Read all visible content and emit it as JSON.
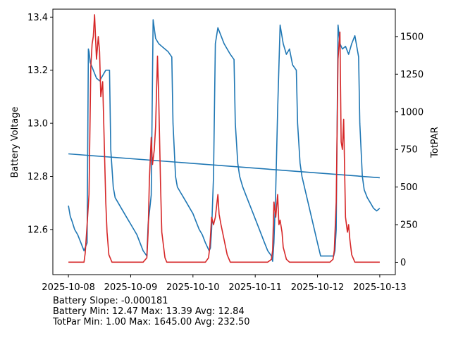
{
  "chart_data": {
    "type": "line",
    "x_tick_labels": [
      "2025-10-08",
      "2025-10-09",
      "2025-10-10",
      "2025-10-11",
      "2025-10-12",
      "2025-10-13"
    ],
    "x_range_days": [
      -0.25,
      5.25
    ],
    "left_axis": {
      "label": "Battery Voltage",
      "color": "#1f77b4",
      "ylim": [
        12.43,
        13.43
      ],
      "tick_labels": [
        "12.6",
        "12.8",
        "13.0",
        "13.2",
        "13.4"
      ],
      "tick_values": [
        12.6,
        12.8,
        13.0,
        13.2,
        13.4
      ]
    },
    "right_axis": {
      "label": "TotPAR",
      "color": "#d62728",
      "ylim": [
        -82,
        1682
      ],
      "tick_labels": [
        "0",
        "250",
        "500",
        "750",
        "1000",
        "1250",
        "1500"
      ],
      "tick_values": [
        0,
        250,
        500,
        750,
        1000,
        1250,
        1500
      ]
    },
    "series": [
      {
        "name": "Battery Voltage",
        "axis": "left",
        "color": "#1f77b4",
        "x_days": [
          0.0,
          0.03,
          0.06,
          0.1,
          0.15,
          0.2,
          0.25,
          0.3,
          0.32,
          0.33,
          0.35,
          0.4,
          0.45,
          0.5,
          0.55,
          0.6,
          0.66,
          0.68,
          0.72,
          0.75,
          0.8,
          0.85,
          0.9,
          0.95,
          1.0,
          1.05,
          1.1,
          1.15,
          1.2,
          1.26,
          1.28,
          1.33,
          1.36,
          1.4,
          1.45,
          1.5,
          1.55,
          1.6,
          1.66,
          1.68,
          1.72,
          1.75,
          1.8,
          1.85,
          1.9,
          1.95,
          2.0,
          2.05,
          2.1,
          2.15,
          2.2,
          2.26,
          2.28,
          2.3,
          2.33,
          2.36,
          2.4,
          2.45,
          2.5,
          2.55,
          2.6,
          2.66,
          2.68,
          2.72,
          2.75,
          2.8,
          2.85,
          2.9,
          2.95,
          3.0,
          3.05,
          3.1,
          3.15,
          3.2,
          3.26,
          3.28,
          3.3,
          3.33,
          3.36,
          3.4,
          3.45,
          3.5,
          3.55,
          3.6,
          3.66,
          3.68,
          3.72,
          3.75,
          3.8,
          3.85,
          3.9,
          3.95,
          4.0,
          4.05,
          4.1,
          4.15,
          4.2,
          4.26,
          4.28,
          4.3,
          4.33,
          4.36,
          4.4,
          4.45,
          4.5,
          4.55,
          4.6,
          4.66,
          4.68,
          4.72,
          4.75,
          4.8,
          4.85,
          4.9,
          4.95,
          5.0
        ],
        "values": [
          12.69,
          12.65,
          12.63,
          12.6,
          12.58,
          12.55,
          12.52,
          12.55,
          13.28,
          13.27,
          13.23,
          13.2,
          13.17,
          13.16,
          13.18,
          13.2,
          13.2,
          12.9,
          12.76,
          12.72,
          12.7,
          12.68,
          12.66,
          12.64,
          12.62,
          12.6,
          12.58,
          12.55,
          12.52,
          12.5,
          12.62,
          12.73,
          13.39,
          13.32,
          13.3,
          13.29,
          13.28,
          13.27,
          13.25,
          13.0,
          12.8,
          12.76,
          12.74,
          12.72,
          12.7,
          12.68,
          12.66,
          12.63,
          12.6,
          12.58,
          12.55,
          12.52,
          12.53,
          12.6,
          12.8,
          13.3,
          13.36,
          13.33,
          13.3,
          13.28,
          13.26,
          13.24,
          13.0,
          12.85,
          12.8,
          12.76,
          12.73,
          12.7,
          12.67,
          12.64,
          12.61,
          12.58,
          12.55,
          12.52,
          12.5,
          12.48,
          12.55,
          12.75,
          13.05,
          13.37,
          13.3,
          13.26,
          13.28,
          13.22,
          13.2,
          13.0,
          12.85,
          12.8,
          12.75,
          12.7,
          12.65,
          12.6,
          12.55,
          12.5,
          12.5,
          12.5,
          12.5,
          12.5,
          12.52,
          12.6,
          13.37,
          13.3,
          13.28,
          13.29,
          13.26,
          13.3,
          13.33,
          13.25,
          13.0,
          12.8,
          12.75,
          12.72,
          12.7,
          12.68,
          12.67,
          12.68
        ]
      },
      {
        "name": "Battery trend",
        "axis": "left",
        "color": "#1f77b4",
        "x_days": [
          0.0,
          5.0
        ],
        "values": [
          12.885,
          12.795
        ]
      },
      {
        "name": "TotPAR",
        "axis": "right",
        "color": "#d62728",
        "x_days": [
          0.0,
          0.1,
          0.25,
          0.27,
          0.3,
          0.33,
          0.36,
          0.38,
          0.4,
          0.42,
          0.45,
          0.48,
          0.5,
          0.52,
          0.55,
          0.6,
          0.62,
          0.65,
          0.7,
          0.75,
          1.2,
          1.26,
          1.28,
          1.3,
          1.33,
          1.35,
          1.38,
          1.4,
          1.43,
          1.45,
          1.48,
          1.5,
          1.55,
          1.58,
          1.6,
          1.62,
          1.66,
          1.7,
          2.2,
          2.25,
          2.27,
          2.3,
          2.33,
          2.36,
          2.4,
          2.42,
          2.45,
          2.5,
          2.55,
          2.6,
          2.65,
          2.7,
          2.75,
          2.8,
          3.2,
          3.26,
          3.28,
          3.3,
          3.33,
          3.36,
          3.38,
          3.4,
          3.43,
          3.45,
          3.5,
          3.55,
          3.6,
          3.65,
          3.7,
          4.2,
          4.25,
          4.27,
          4.3,
          4.33,
          4.36,
          4.38,
          4.4,
          4.42,
          4.45,
          4.48,
          4.5,
          4.52,
          4.55,
          4.6,
          4.65,
          5.0
        ],
        "values": [
          1,
          1,
          1,
          60,
          250,
          450,
          1300,
          1450,
          1500,
          1645,
          1350,
          1500,
          1400,
          1100,
          1200,
          400,
          200,
          50,
          1,
          1,
          1,
          30,
          200,
          550,
          830,
          650,
          750,
          900,
          1370,
          1100,
          500,
          200,
          30,
          1,
          1,
          1,
          1,
          1,
          1,
          30,
          100,
          300,
          250,
          300,
          450,
          320,
          250,
          150,
          50,
          1,
          1,
          1,
          1,
          1,
          1,
          20,
          80,
          400,
          300,
          450,
          250,
          280,
          200,
          100,
          20,
          1,
          1,
          1,
          1,
          1,
          20,
          80,
          400,
          1350,
          1530,
          800,
          750,
          950,
          300,
          200,
          250,
          150,
          50,
          1,
          1,
          1
        ]
      }
    ]
  },
  "stats": {
    "line1": "Battery Slope: -0.000181",
    "line2": "Battery Min: 12.47 Max: 13.39 Avg: 12.84",
    "line3": "TotPar Min: 1.00 Max: 1645.00 Avg: 232.50"
  }
}
